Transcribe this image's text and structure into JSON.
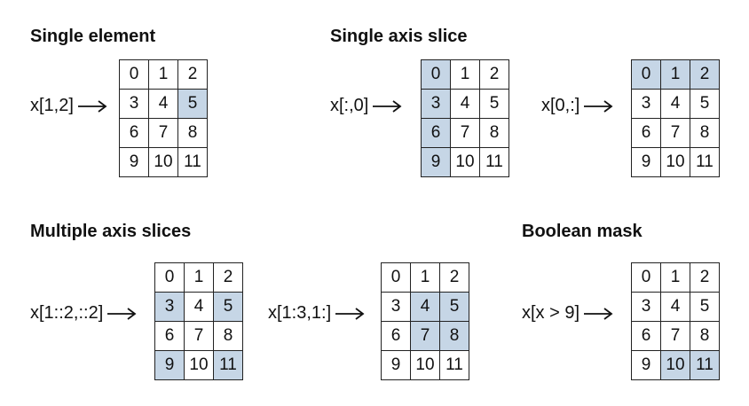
{
  "values": [
    "0",
    "1",
    "2",
    "3",
    "4",
    "5",
    "6",
    "7",
    "8",
    "9",
    "10",
    "11"
  ],
  "highlight_color": "#c6d6e6",
  "headings": {
    "single_element": "Single element",
    "single_axis_slice": "Single axis slice",
    "multiple_axis_slices": "Multiple axis slices",
    "boolean_mask": "Boolean mask"
  },
  "examples": [
    {
      "expr": "x[1,2]",
      "highlighted": [
        5
      ]
    },
    {
      "expr": "x[:,0]",
      "highlighted": [
        0,
        3,
        6,
        9
      ]
    },
    {
      "expr": "x[0,:]",
      "highlighted": [
        0,
        1,
        2
      ]
    },
    {
      "expr": "x[1::2,::2]",
      "highlighted": [
        3,
        5,
        9,
        11
      ]
    },
    {
      "expr": "x[1:3,1:]",
      "highlighted": [
        4,
        5,
        7,
        8
      ]
    },
    {
      "expr": "x[x > 9]",
      "highlighted": [
        10,
        11
      ]
    }
  ]
}
